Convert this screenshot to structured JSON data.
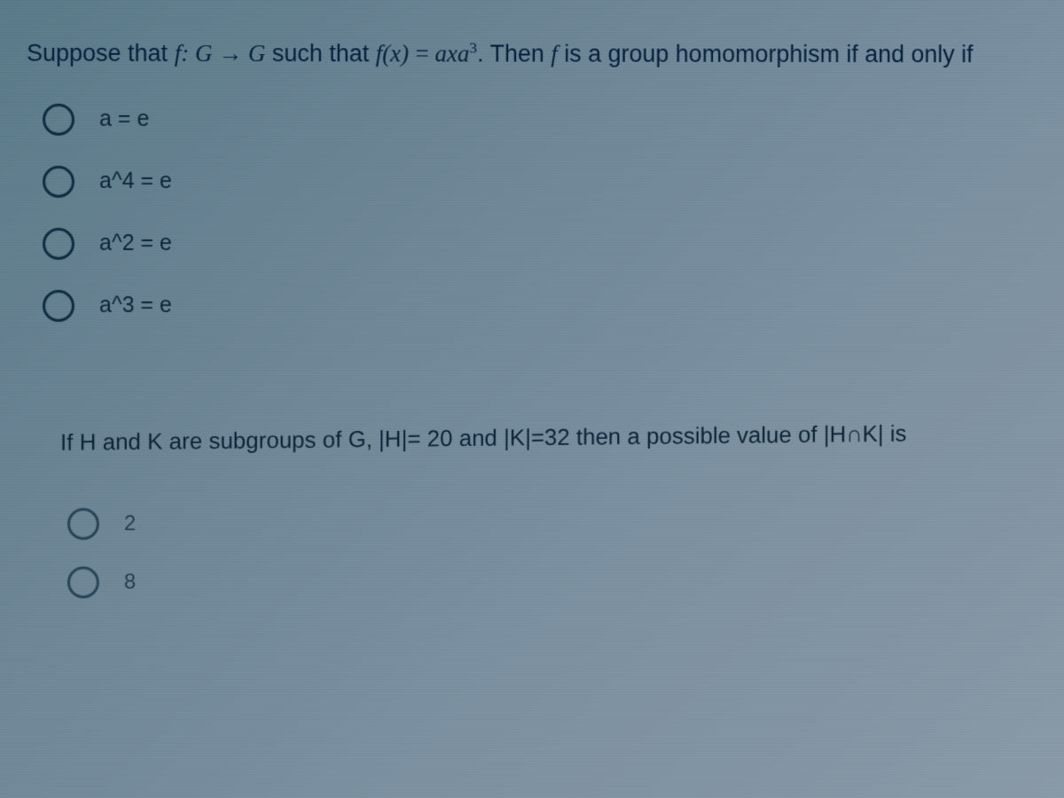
{
  "colors": {
    "bg_gradient_start": "#5a7a8a",
    "bg_gradient_end": "#8a9aa8",
    "text_primary": "#041e3a",
    "text_option": "#0a2235",
    "radio_border": "#0d2b40"
  },
  "typography": {
    "question_fontsize_pt": 20,
    "option_fontsize_pt": 18,
    "font_family": "Segoe UI / Arial",
    "math_font_family": "Georgia / Times (italic)"
  },
  "question1": {
    "prompt_prefix": "Suppose that ",
    "func_decl": "f: G → G",
    "prompt_mid1": " such that ",
    "func_def_lhs": "f(x)",
    "equals": " = ",
    "func_def_rhs": "axa",
    "exponent": "3",
    "prompt_suffix1": ". Then ",
    "f_italic": "f",
    "prompt_suffix2": " is a group homomorphism if and only if",
    "options": [
      {
        "label": "a = e"
      },
      {
        "label": "a^4 = e"
      },
      {
        "label": "a^2 = e"
      },
      {
        "label": "a^3 = e"
      }
    ]
  },
  "question2": {
    "prompt": "If H and K are subgroups of G, |H|= 20 and |K|=32 then a possible value of |H∩K| is",
    "options": [
      {
        "label": "2"
      },
      {
        "label": "8"
      }
    ]
  }
}
